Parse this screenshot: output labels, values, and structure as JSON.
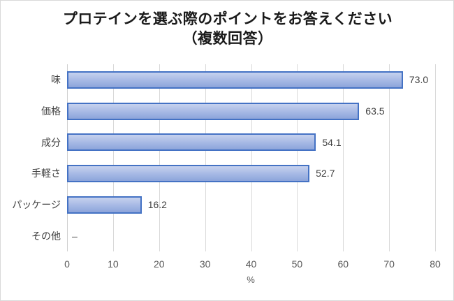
{
  "chart_data": {
    "type": "bar",
    "orientation": "horizontal",
    "title_lines": [
      "プロテインを選ぶ際のポイントをお答えください",
      "（複数回答）"
    ],
    "categories": [
      "味",
      "価格",
      "成分",
      "手軽さ",
      "パッケージ",
      "その他"
    ],
    "values": [
      73.0,
      63.5,
      54.1,
      52.7,
      16.2,
      null
    ],
    "value_labels": [
      "73.0",
      "63.5",
      "54.1",
      "52.7",
      "16.2",
      "–"
    ],
    "xlabel": "%",
    "xlim": [
      0,
      80
    ],
    "xticks": [
      0,
      10,
      20,
      30,
      40,
      50,
      60,
      70,
      80
    ],
    "grid": true,
    "legend": "none",
    "colors": {
      "bar_border": "#4472c4",
      "bar_fill_top": "#c6d1ee",
      "bar_fill_mid": "#a5b8e4",
      "bar_fill_bottom": "#8ca4da",
      "gridline": "#d9d9d9",
      "axis_line": "#cfcfcf",
      "title_text": "#1a1a1a",
      "label_text": "#404040",
      "tick_text": "#595959"
    }
  }
}
